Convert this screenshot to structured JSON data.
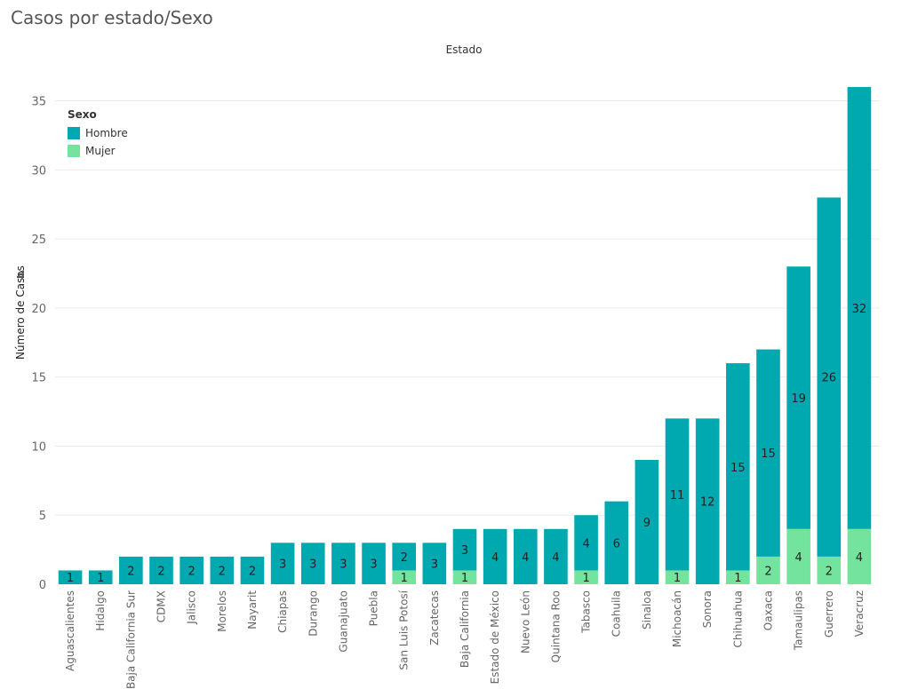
{
  "title": "Casos por estado/Sexo",
  "colors": {
    "hombre": "#00a9b0",
    "mujer": "#74e39e",
    "grid": "#ebebeb",
    "axis_text": "#666666",
    "label_text": "#222222"
  },
  "chart_data": {
    "type": "bar",
    "stacked": true,
    "title": "Casos por estado/Sexo",
    "xlabel": "Estado",
    "ylabel": "Número de Casos",
    "ylim": [
      0,
      36
    ],
    "yticks": [
      0,
      5,
      10,
      15,
      20,
      25,
      30,
      35
    ],
    "grid": true,
    "legend": {
      "title": "Sexo",
      "position": "top-left"
    },
    "categories": [
      "Aguascalientes",
      "Hidalgo",
      "Baja California Sur",
      "CDMX",
      "Jalisco",
      "Morelos",
      "Nayarit",
      "Chiapas",
      "Durango",
      "Guanajuato",
      "Puebla",
      "San Luis Potosí",
      "Zacatecas",
      "Baja California",
      "Estado de México",
      "Nuevo León",
      "Quintana Roo",
      "Tabasco",
      "Coahuila",
      "Sinaloa",
      "Michoacán",
      "Sonora",
      "Chihuahua",
      "Oaxaca",
      "Tamaulipas",
      "Guerrero",
      "Veracruz"
    ],
    "series": [
      {
        "name": "Hombre",
        "color": "#00a9b0",
        "values": [
          1,
          1,
          2,
          2,
          2,
          2,
          2,
          3,
          3,
          3,
          3,
          2,
          3,
          3,
          4,
          4,
          4,
          4,
          6,
          9,
          11,
          12,
          15,
          15,
          19,
          26,
          32
        ]
      },
      {
        "name": "Mujer",
        "color": "#74e39e",
        "values": [
          0,
          0,
          0,
          0,
          0,
          0,
          0,
          0,
          0,
          0,
          0,
          1,
          0,
          1,
          0,
          0,
          0,
          1,
          0,
          0,
          1,
          0,
          1,
          2,
          4,
          2,
          4
        ]
      }
    ]
  }
}
